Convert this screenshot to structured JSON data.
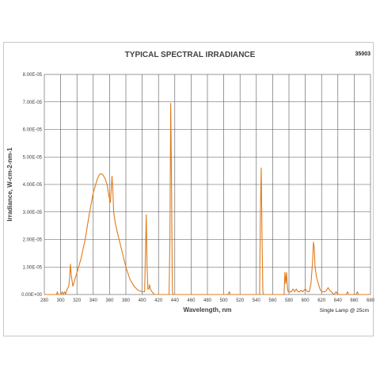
{
  "chart_data": {
    "type": "line",
    "title": "TYPICAL SPECTRAL IRRADIANCE",
    "code": "35003",
    "xlabel": "Wavelength, nm",
    "ylabel": "Irradiance, W-cm-2-nm-1",
    "note": "Single Lamp @ 25cm",
    "xlim": [
      280,
      680
    ],
    "ylim": [
      0,
      8e-05
    ],
    "x_ticks": [
      "280",
      "300",
      "320",
      "340",
      "360",
      "380",
      "400",
      "420",
      "440",
      "460",
      "480",
      "500",
      "520",
      "540",
      "560",
      "580",
      "600",
      "620",
      "640",
      "660",
      "680"
    ],
    "y_ticks": [
      "0.00E+00",
      "1.00E-05",
      "2.00E-05",
      "3.00E-05",
      "4.00E-05",
      "5.00E-05",
      "6.00E-05",
      "7.00E-05",
      "8.00E-05"
    ],
    "grid": true,
    "line_color": "#e07b1a",
    "series": [
      {
        "points": [
          [
            280,
            0
          ],
          [
            295,
            0
          ],
          [
            296,
            1e-06
          ],
          [
            297,
            0
          ],
          [
            300,
            0
          ],
          [
            302,
            1e-06
          ],
          [
            303,
            0
          ],
          [
            305,
            1e-06
          ],
          [
            306,
            0
          ],
          [
            308,
            2e-06
          ],
          [
            310,
            3e-06
          ],
          [
            311,
            6e-06
          ],
          [
            312,
            1.1e-05
          ],
          [
            313,
            7e-06
          ],
          [
            314,
            5e-06
          ],
          [
            315,
            3e-06
          ],
          [
            317,
            5e-06
          ],
          [
            320,
            8e-06
          ],
          [
            325,
            1.3e-05
          ],
          [
            330,
            2e-05
          ],
          [
            335,
            2.9e-05
          ],
          [
            340,
            3.7e-05
          ],
          [
            345,
            4.2e-05
          ],
          [
            348,
            4.38e-05
          ],
          [
            351,
            4.38e-05
          ],
          [
            354,
            4.25e-05
          ],
          [
            357,
            4e-05
          ],
          [
            359,
            3.6e-05
          ],
          [
            361,
            3.35e-05
          ],
          [
            362,
            3.8e-05
          ],
          [
            363,
            4.3e-05
          ],
          [
            364,
            3.8e-05
          ],
          [
            365,
            3e-05
          ],
          [
            367,
            2.6e-05
          ],
          [
            370,
            2.2e-05
          ],
          [
            375,
            1.6e-05
          ],
          [
            380,
            1e-05
          ],
          [
            385,
            5.5e-06
          ],
          [
            390,
            3e-06
          ],
          [
            395,
            1.5e-06
          ],
          [
            400,
            1e-06
          ],
          [
            403,
            1e-06
          ],
          [
            404,
            1.5e-05
          ],
          [
            405,
            2.9e-05
          ],
          [
            406,
            1e-05
          ],
          [
            407,
            2e-06
          ],
          [
            408,
            2e-06
          ],
          [
            409,
            3.5e-06
          ],
          [
            410,
            2e-06
          ],
          [
            412,
            1e-06
          ],
          [
            415,
            0
          ],
          [
            433,
            0
          ],
          [
            434,
            2e-05
          ],
          [
            435,
            6.95e-05
          ],
          [
            436,
            4e-05
          ],
          [
            437,
            1e-06
          ],
          [
            438,
            0
          ],
          [
            505,
            0
          ],
          [
            507,
            1e-06
          ],
          [
            508,
            0
          ],
          [
            544,
            0
          ],
          [
            545,
            3e-05
          ],
          [
            546,
            4.6e-05
          ],
          [
            547,
            2e-05
          ],
          [
            548,
            1e-06
          ],
          [
            549,
            0
          ],
          [
            574,
            0
          ],
          [
            575,
            8e-06
          ],
          [
            576,
            4e-06
          ],
          [
            577,
            8e-06
          ],
          [
            578,
            3e-06
          ],
          [
            579,
            1e-06
          ],
          [
            583,
            1e-06
          ],
          [
            585,
            2e-06
          ],
          [
            587,
            1e-06
          ],
          [
            589,
            2e-06
          ],
          [
            591,
            1e-06
          ],
          [
            593,
            1e-06
          ],
          [
            595,
            1.5e-06
          ],
          [
            597,
            1e-06
          ],
          [
            600,
            2e-06
          ],
          [
            603,
            1e-06
          ],
          [
            605,
            1e-06
          ],
          [
            607,
            4e-06
          ],
          [
            609,
            1.2e-05
          ],
          [
            610,
            1.9e-05
          ],
          [
            611,
            1.7e-05
          ],
          [
            612,
            1e-05
          ],
          [
            614,
            6e-06
          ],
          [
            616,
            4e-06
          ],
          [
            618,
            2e-06
          ],
          [
            620,
            1e-06
          ],
          [
            622,
            1e-06
          ],
          [
            624,
            1e-06
          ],
          [
            626,
            1.5e-06
          ],
          [
            628,
            2.5e-06
          ],
          [
            630,
            1.5e-06
          ],
          [
            632,
            1e-06
          ],
          [
            635,
            0
          ],
          [
            638,
            1e-06
          ],
          [
            640,
            0
          ],
          [
            650,
            0
          ],
          [
            652,
            1e-06
          ],
          [
            653,
            0
          ],
          [
            662,
            0
          ],
          [
            664,
            1e-06
          ],
          [
            665,
            0
          ],
          [
            680,
            0
          ]
        ]
      }
    ]
  }
}
